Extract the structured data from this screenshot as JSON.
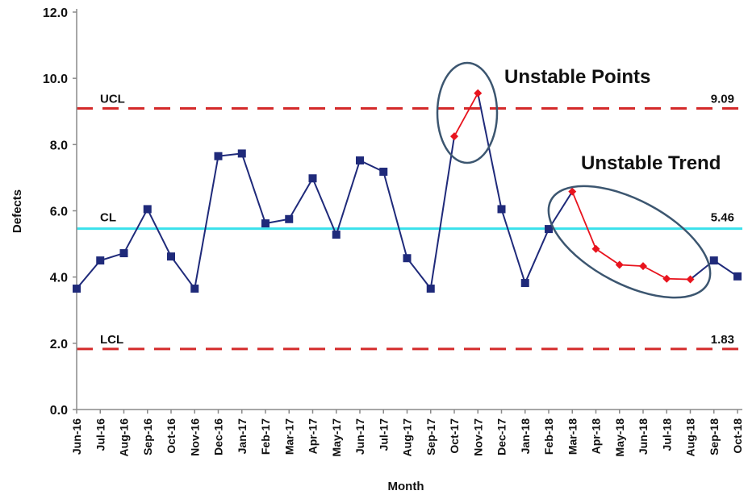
{
  "chart_data": {
    "type": "line",
    "xlabel": "Month",
    "ylabel": "Defects",
    "ylim": [
      0,
      12
    ],
    "yticks": [
      "0.0",
      "2.0",
      "4.0",
      "6.0",
      "8.0",
      "10.0",
      "12.0"
    ],
    "grid": false,
    "categories": [
      "Jun-16",
      "Jul-16",
      "Aug-16",
      "Sep-16",
      "Oct-16",
      "Nov-16",
      "Dec-16",
      "Jan-17",
      "Feb-17",
      "Mar-17",
      "Apr-17",
      "May-17",
      "Jun-17",
      "Jul-17",
      "Aug-17",
      "Sep-17",
      "Oct-17",
      "Nov-17",
      "Dec-17",
      "Jan-18",
      "Feb-18",
      "Mar-18",
      "Apr-18",
      "May-18",
      "Jun-18",
      "Jul-18",
      "Aug-18",
      "Sep-18",
      "Oct-18"
    ],
    "values": [
      3.65,
      4.5,
      4.72,
      6.05,
      4.62,
      3.65,
      7.65,
      7.73,
      5.62,
      5.75,
      6.98,
      5.28,
      7.52,
      7.18,
      4.57,
      3.65,
      8.25,
      9.55,
      6.05,
      3.82,
      5.45,
      6.58,
      4.85,
      4.37,
      4.33,
      3.95,
      3.93,
      4.5,
      4.02
    ],
    "unstable_indices": [
      16,
      17,
      21,
      22,
      23,
      24,
      25,
      26
    ],
    "colors": {
      "series": "#1f2a7a",
      "unstable": "#e8141e",
      "limit": "#d42a2a",
      "center": "#39e1ec",
      "ellipse": "#3c5670",
      "axis": "#8a8a8a"
    },
    "reference_lines": {
      "ucl": {
        "label": "UCL",
        "value": 9.09,
        "value_label": "9.09"
      },
      "cl": {
        "label": "CL",
        "value": 5.46,
        "value_label": "5.46"
      },
      "lcl": {
        "label": "LCL",
        "value": 1.83,
        "value_label": "1.83"
      }
    },
    "annotations": {
      "points": "Unstable Points",
      "trend": "Unstable Trend"
    }
  }
}
